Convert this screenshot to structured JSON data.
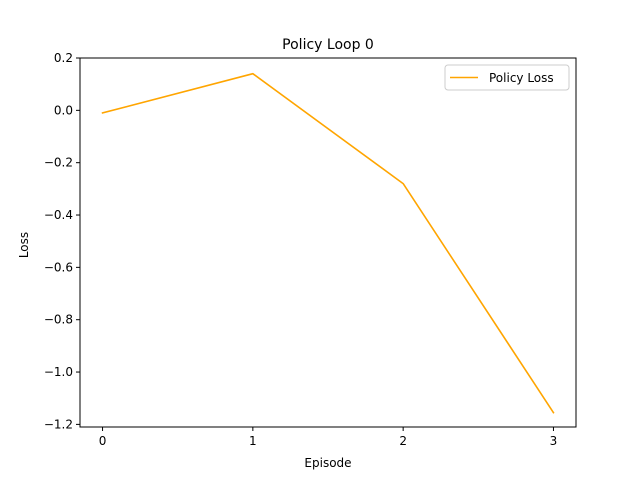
{
  "chart_data": {
    "type": "line",
    "title": "Policy Loop 0",
    "xlabel": "Episode",
    "ylabel": "Loss",
    "x": [
      0,
      1,
      2,
      3
    ],
    "xticks": [
      "0",
      "1",
      "2",
      "3"
    ],
    "yticks": [
      "0.2",
      "0.0",
      "−0.2",
      "−0.4",
      "−0.6",
      "−0.8",
      "−1.0",
      "−1.2"
    ],
    "ytick_values": [
      0.2,
      0.0,
      -0.2,
      -0.4,
      -0.6,
      -0.8,
      -1.0,
      -1.2
    ],
    "xlim": [
      -0.15,
      3.15
    ],
    "ylim": [
      -1.21,
      0.2
    ],
    "grid": false,
    "legend_position": "top-right",
    "series": [
      {
        "name": "Policy Loss",
        "color": "#ffa500",
        "values": [
          -0.01,
          0.14,
          -0.28,
          -1.155
        ]
      }
    ]
  }
}
